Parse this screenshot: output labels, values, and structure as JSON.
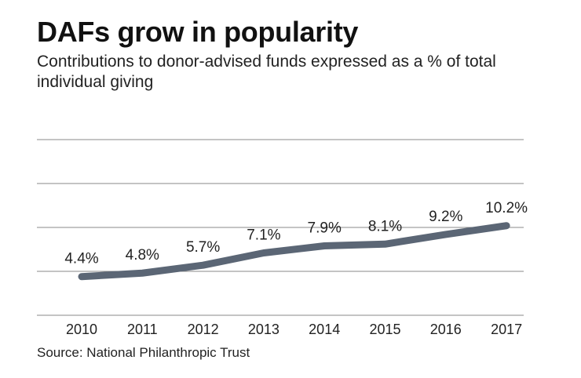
{
  "title": "DAFs grow in popularity",
  "subtitle": "Contributions to donor-advised funds expressed as a % of total individual giving",
  "source": "Source: National Philanthropic Trust",
  "colors": {
    "line": "#5b6675",
    "grid": "#8a8a8a"
  },
  "chart_data": {
    "type": "line",
    "title": "DAFs grow in popularity",
    "subtitle": "Contributions to donor-advised funds expressed as a % of total individual giving",
    "xlabel": "",
    "ylabel": "",
    "categories": [
      "2010",
      "2011",
      "2012",
      "2013",
      "2014",
      "2015",
      "2016",
      "2017"
    ],
    "series": [
      {
        "values": [
          4.4,
          4.8,
          5.7,
          7.1,
          7.9,
          8.1,
          9.2,
          10.2
        ],
        "labels": [
          "4.4%",
          "4.8%",
          "5.7%",
          "7.1%",
          "7.9%",
          "8.1%",
          "9.2%",
          "10.2%"
        ]
      }
    ],
    "ylim": [
      0,
      20
    ],
    "grid": true,
    "legend": "none"
  }
}
